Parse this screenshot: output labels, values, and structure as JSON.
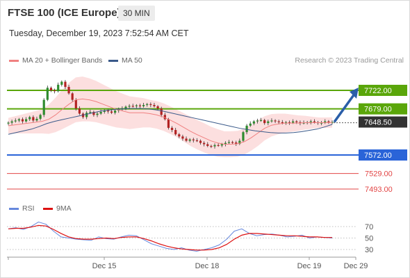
{
  "header": {
    "title": "FTSE 100 (ICE Europe)",
    "interval": "30 MIN",
    "timestamp": "Tuesday, December 19, 2023 7:52:54 AM CET"
  },
  "legend": {
    "ma20_label": "MA 20 + Bollinger Bands",
    "ma50_label": "MA 50",
    "credit": "Research © 2023 Trading Central",
    "ma20_color": "#f08080",
    "ma50_color": "#3a5a8a",
    "band_color": "#fbd4d4"
  },
  "rsi_legend": {
    "rsi_label": "RSI",
    "ma9_label": "9MA",
    "rsi_color": "#6688dd",
    "ma9_color": "#dd1111"
  },
  "colors": {
    "bull_candle": "#2e8b2e",
    "bear_candle": "#b22222",
    "resistance": "#5aa60a",
    "support": "#2a64d8",
    "minor_support": "#e24444",
    "current": "#333333",
    "arrow": "#2a5ea8"
  },
  "chart_data": [
    {
      "type": "candlestick",
      "title": "FTSE 100 (ICE Europe)",
      "interval": "30 MIN",
      "ylim": [
        7485,
        7760
      ],
      "x_ticks": [
        "Dec 15",
        "Dec 18",
        "Dec 19",
        "Dec 29"
      ],
      "levels": [
        {
          "name": "resistance-2",
          "value": 7722.0,
          "label": "7722.00",
          "style": "green-box"
        },
        {
          "name": "resistance-1",
          "value": 7679.0,
          "label": "7679.00",
          "style": "green-box"
        },
        {
          "name": "last-price",
          "value": 7648.5,
          "label": "7648.50",
          "style": "dark-box"
        },
        {
          "name": "support-1",
          "value": 7572.0,
          "label": "7572.00",
          "style": "blue-box"
        },
        {
          "name": "support-2",
          "value": 7529.0,
          "label": "7529.00",
          "style": "red-text"
        },
        {
          "name": "support-3",
          "value": 7493.0,
          "label": "7493.00",
          "style": "red-text"
        }
      ],
      "close_series": [
        7647,
        7650,
        7652,
        7655,
        7650,
        7655,
        7660,
        7652,
        7656,
        7665,
        7700,
        7728,
        7722,
        7720,
        7735,
        7742,
        7730,
        7715,
        7700,
        7680,
        7668,
        7660,
        7670,
        7672,
        7665,
        7668,
        7672,
        7675,
        7673,
        7670,
        7675,
        7678,
        7680,
        7684,
        7686,
        7685,
        7687,
        7685,
        7688,
        7690,
        7688,
        7685,
        7680,
        7665,
        7655,
        7635,
        7630,
        7620,
        7615,
        7610,
        7605,
        7608,
        7606,
        7605,
        7600,
        7597,
        7593,
        7592,
        7595,
        7594,
        7597,
        7600,
        7602,
        7601,
        7598,
        7605,
        7625,
        7640,
        7645,
        7650,
        7652,
        7653,
        7646,
        7650,
        7652,
        7650,
        7648,
        7646,
        7648,
        7647,
        7650,
        7648,
        7646,
        7647,
        7648,
        7650,
        7648,
        7646,
        7647,
        7650,
        7648,
        7648.5
      ],
      "ma20_series": [
        7640,
        7642,
        7644,
        7646,
        7648,
        7650,
        7655,
        7665,
        7678,
        7690,
        7700,
        7702,
        7700,
        7696,
        7690,
        7684,
        7678,
        7674,
        7670,
        7670,
        7670,
        7668,
        7665,
        7660,
        7653,
        7645,
        7636,
        7627,
        7619,
        7612,
        7605,
        7600,
        7597,
        7597,
        7598,
        7603,
        7612,
        7623,
        7634,
        7641,
        7644,
        7646,
        7646,
        7646,
        7647,
        7647,
        7647,
        7647,
        7647.5
      ],
      "ma50_series": [
        7620,
        7624,
        7628,
        7632,
        7638,
        7645,
        7650,
        7654,
        7658,
        7662,
        7666,
        7670,
        7674,
        7676,
        7678,
        7679,
        7680,
        7680,
        7679,
        7677,
        7674,
        7670,
        7666,
        7662,
        7658,
        7654,
        7650,
        7646,
        7642,
        7638,
        7634,
        7631,
        7628,
        7626,
        7624,
        7623,
        7623,
        7624,
        7626,
        7629,
        7632,
        7637,
        7643
      ],
      "projection": {
        "from": 7648.5,
        "to": 7722.0
      }
    },
    {
      "type": "line",
      "title": "RSI",
      "ylim": [
        20,
        80
      ],
      "y_ticks": [
        70,
        50,
        30
      ],
      "series": [
        {
          "name": "RSI",
          "values": [
            66,
            68,
            65,
            70,
            78,
            74,
            62,
            52,
            50,
            48,
            47,
            46,
            52,
            49,
            48,
            52,
            55,
            54,
            47,
            40,
            36,
            32,
            30,
            33,
            29,
            27,
            30,
            33,
            38,
            48,
            62,
            66,
            58,
            54,
            56,
            57,
            55,
            52,
            53,
            55,
            50,
            52,
            51,
            50
          ]
        },
        {
          "name": "9MA",
          "values": [
            66,
            67,
            67,
            69,
            72,
            71,
            65,
            58,
            52,
            49,
            48,
            48,
            49,
            50,
            49,
            51,
            52,
            52,
            49,
            45,
            40,
            36,
            33,
            31,
            30,
            29,
            29,
            30,
            33,
            39,
            48,
            55,
            58,
            58,
            57,
            56,
            55,
            54,
            54,
            53,
            52,
            52,
            51,
            51
          ]
        }
      ]
    }
  ]
}
